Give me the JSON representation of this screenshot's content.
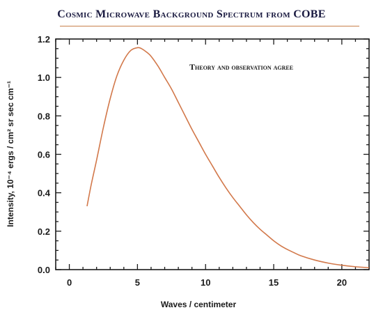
{
  "chart_data": {
    "type": "line",
    "title": "Cosmic Microwave Background Spectrum from COBE",
    "xlabel": "Waves / centimeter",
    "ylabel": "Intensity, 10⁻⁴ ergs / cm² sr sec cm⁻¹",
    "annotation": "Theory and observation agree",
    "xlim": [
      -1,
      22
    ],
    "ylim": [
      0,
      1.2
    ],
    "x_ticks": [
      0,
      5,
      10,
      15,
      20
    ],
    "y_ticks": [
      0.0,
      0.2,
      0.4,
      0.6,
      0.8,
      1.0,
      1.2
    ],
    "x_tick_labels": [
      "0",
      "5",
      "10",
      "15",
      "20"
    ],
    "y_tick_labels": [
      "0.0",
      "0.2",
      "0.4",
      "0.6",
      "0.8",
      "1.0",
      "1.2"
    ],
    "grid": false,
    "line_color": "#d2784a",
    "series": [
      {
        "x": [
          1.3,
          1.6,
          2.0,
          2.5,
          3.0,
          3.5,
          4.0,
          4.5,
          5.0,
          5.3,
          5.7,
          6.0,
          6.5,
          7.0,
          7.5,
          8.0,
          8.5,
          9.0,
          9.5,
          10.0,
          10.5,
          11.0,
          11.5,
          12.0,
          12.5,
          13.0,
          13.5,
          14.0,
          14.5,
          15.0,
          15.5,
          16.0,
          16.5,
          17.0,
          18.0,
          19.0,
          20.0,
          21.0,
          22.0
        ],
        "y": [
          0.33,
          0.44,
          0.57,
          0.74,
          0.89,
          1.01,
          1.09,
          1.14,
          1.155,
          1.15,
          1.13,
          1.11,
          1.06,
          1.0,
          0.94,
          0.87,
          0.8,
          0.73,
          0.665,
          0.6,
          0.54,
          0.48,
          0.425,
          0.375,
          0.33,
          0.285,
          0.245,
          0.21,
          0.18,
          0.15,
          0.125,
          0.105,
          0.088,
          0.072,
          0.05,
          0.034,
          0.023,
          0.015,
          0.01
        ]
      }
    ]
  }
}
